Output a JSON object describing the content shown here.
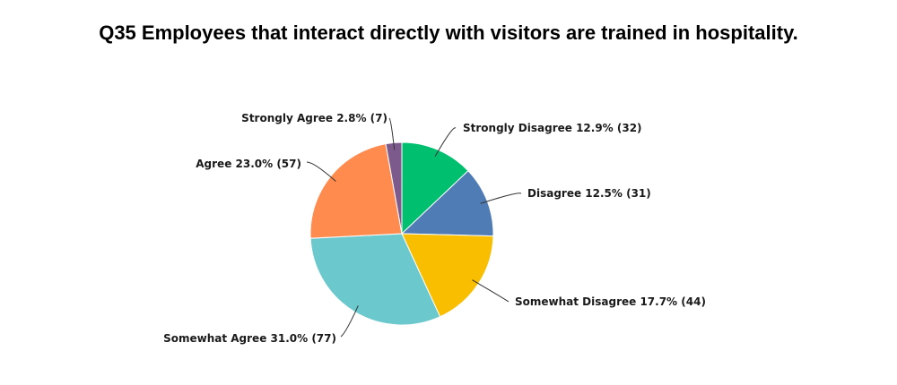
{
  "chart_data": {
    "type": "pie",
    "title": "Q35 Employees that interact directly with visitors are trained in hospitality.",
    "slices": [
      {
        "label": "Strongly Disagree",
        "percent": 12.9,
        "percent_label": "12.9%",
        "count": 32,
        "color": "#00bf6f"
      },
      {
        "label": "Disagree",
        "percent": 12.5,
        "percent_label": "12.5%",
        "count": 31,
        "color": "#507cb6"
      },
      {
        "label": "Somewhat Disagree",
        "percent": 17.7,
        "percent_label": "17.7%",
        "count": 44,
        "color": "#f9be00"
      },
      {
        "label": "Somewhat Agree",
        "percent": 31.0,
        "percent_label": "31.0%",
        "count": 77,
        "color": "#6bc8cd"
      },
      {
        "label": "Agree",
        "percent": 23.0,
        "percent_label": "23.0%",
        "count": 57,
        "color": "#ff8b4f"
      },
      {
        "label": "Strongly Agree",
        "percent": 2.8,
        "percent_label": "2.8%",
        "count": 7,
        "color": "#7d5a8c"
      }
    ]
  }
}
